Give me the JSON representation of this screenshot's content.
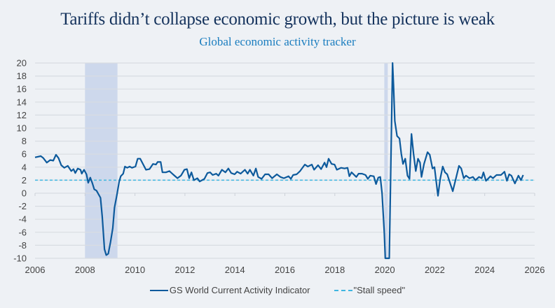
{
  "chart_data": {
    "type": "line",
    "title": "Tariffs didn’t collapse economic growth, but the picture is weak",
    "subtitle": "Global economic activity tracker",
    "xlim": [
      2006,
      2026
    ],
    "ylim": [
      -10,
      20
    ],
    "x_ticks": [
      "2006",
      "2008",
      "2010",
      "2012",
      "2014",
      "2016",
      "2018",
      "2020",
      "2022",
      "2024",
      "2026"
    ],
    "y_ticks": [
      "20",
      "18",
      "16",
      "14",
      "12",
      "10",
      "8",
      "6",
      "4",
      "2",
      "0",
      "-2",
      "-4",
      "-6",
      "-8",
      "-10"
    ],
    "grid": "horizontal",
    "legend_placement": "bottom",
    "shaded_periods": [
      [
        2008.0,
        2009.3
      ],
      [
        2019.98,
        2020.12
      ]
    ],
    "colors": {
      "series": "#0d5a9c",
      "stall": "#3fb6e0",
      "shade": "#cdd8ec",
      "title": "#14325c",
      "subtitle": "#1a7dbf"
    },
    "series": [
      {
        "name": "GS World Current Activity Indicator",
        "style": "solid",
        "points": [
          [
            2006.0,
            5.5
          ],
          [
            2006.23,
            5.7
          ],
          [
            2006.33,
            5.4
          ],
          [
            2006.47,
            4.7
          ],
          [
            2006.61,
            5.1
          ],
          [
            2006.73,
            5.0
          ],
          [
            2006.84,
            5.9
          ],
          [
            2006.94,
            5.4
          ],
          [
            2007.05,
            4.3
          ],
          [
            2007.17,
            3.9
          ],
          [
            2007.31,
            4.2
          ],
          [
            2007.45,
            3.4
          ],
          [
            2007.54,
            3.7
          ],
          [
            2007.61,
            3.1
          ],
          [
            2007.71,
            3.8
          ],
          [
            2007.82,
            3.6
          ],
          [
            2007.87,
            3.0
          ],
          [
            2007.96,
            3.6
          ],
          [
            2008.06,
            2.9
          ],
          [
            2008.13,
            1.6
          ],
          [
            2008.21,
            2.4
          ],
          [
            2008.29,
            1.6
          ],
          [
            2008.37,
            0.6
          ],
          [
            2008.46,
            0.4
          ],
          [
            2008.62,
            -0.7
          ],
          [
            2008.69,
            -3.6
          ],
          [
            2008.78,
            -8.6
          ],
          [
            2008.85,
            -9.5
          ],
          [
            2008.93,
            -9.3
          ],
          [
            2009.02,
            -7.5
          ],
          [
            2009.11,
            -5.4
          ],
          [
            2009.18,
            -2.2
          ],
          [
            2009.27,
            -0.4
          ],
          [
            2009.37,
            1.8
          ],
          [
            2009.43,
            2.6
          ],
          [
            2009.53,
            3.0
          ],
          [
            2009.6,
            4.1
          ],
          [
            2009.69,
            3.9
          ],
          [
            2009.79,
            4.1
          ],
          [
            2009.88,
            3.9
          ],
          [
            2010.02,
            4.1
          ],
          [
            2010.11,
            5.3
          ],
          [
            2010.21,
            5.3
          ],
          [
            2010.32,
            4.5
          ],
          [
            2010.44,
            3.6
          ],
          [
            2010.58,
            3.7
          ],
          [
            2010.72,
            4.5
          ],
          [
            2010.84,
            4.4
          ],
          [
            2010.91,
            4.8
          ],
          [
            2011.03,
            4.8
          ],
          [
            2011.1,
            3.2
          ],
          [
            2011.24,
            3.2
          ],
          [
            2011.38,
            3.4
          ],
          [
            2011.52,
            2.9
          ],
          [
            2011.7,
            2.3
          ],
          [
            2011.84,
            2.7
          ],
          [
            2011.98,
            3.6
          ],
          [
            2012.08,
            3.7
          ],
          [
            2012.17,
            2.3
          ],
          [
            2012.26,
            3.2
          ],
          [
            2012.36,
            2.0
          ],
          [
            2012.5,
            2.3
          ],
          [
            2012.59,
            1.8
          ],
          [
            2012.78,
            2.2
          ],
          [
            2012.9,
            3.1
          ],
          [
            2013.01,
            3.2
          ],
          [
            2013.11,
            2.8
          ],
          [
            2013.25,
            3.0
          ],
          [
            2013.34,
            2.7
          ],
          [
            2013.48,
            3.6
          ],
          [
            2013.62,
            3.2
          ],
          [
            2013.74,
            3.8
          ],
          [
            2013.85,
            3.1
          ],
          [
            2013.99,
            2.9
          ],
          [
            2014.09,
            3.3
          ],
          [
            2014.23,
            3.0
          ],
          [
            2014.4,
            3.6
          ],
          [
            2014.51,
            3.0
          ],
          [
            2014.6,
            3.6
          ],
          [
            2014.74,
            2.7
          ],
          [
            2014.84,
            3.8
          ],
          [
            2014.93,
            2.5
          ],
          [
            2015.07,
            2.2
          ],
          [
            2015.21,
            2.9
          ],
          [
            2015.35,
            2.9
          ],
          [
            2015.49,
            2.3
          ],
          [
            2015.68,
            2.9
          ],
          [
            2015.82,
            2.5
          ],
          [
            2015.96,
            2.3
          ],
          [
            2016.15,
            2.6
          ],
          [
            2016.24,
            2.2
          ],
          [
            2016.33,
            2.8
          ],
          [
            2016.47,
            2.9
          ],
          [
            2016.61,
            3.4
          ],
          [
            2016.8,
            4.4
          ],
          [
            2016.92,
            4.1
          ],
          [
            2017.08,
            4.4
          ],
          [
            2017.17,
            3.6
          ],
          [
            2017.33,
            4.3
          ],
          [
            2017.45,
            3.7
          ],
          [
            2017.59,
            4.7
          ],
          [
            2017.67,
            4.0
          ],
          [
            2017.75,
            5.3
          ],
          [
            2017.87,
            4.5
          ],
          [
            2017.99,
            4.4
          ],
          [
            2018.08,
            3.6
          ],
          [
            2018.25,
            3.9
          ],
          [
            2018.39,
            3.8
          ],
          [
            2018.51,
            3.9
          ],
          [
            2018.58,
            2.6
          ],
          [
            2018.67,
            3.2
          ],
          [
            2018.86,
            2.5
          ],
          [
            2018.95,
            3.0
          ],
          [
            2019.09,
            3.0
          ],
          [
            2019.23,
            2.8
          ],
          [
            2019.32,
            2.2
          ],
          [
            2019.42,
            2.7
          ],
          [
            2019.56,
            2.6
          ],
          [
            2019.65,
            1.4
          ],
          [
            2019.74,
            2.4
          ],
          [
            2019.82,
            2.5
          ],
          [
            2019.89,
            0.0
          ],
          [
            2019.98,
            -6.1
          ],
          [
            2020.02,
            -10
          ],
          [
            2020.18,
            -10
          ],
          [
            2020.31,
            20
          ],
          [
            2020.35,
            16.5
          ],
          [
            2020.4,
            11.1
          ],
          [
            2020.49,
            8.8
          ],
          [
            2020.59,
            8.4
          ],
          [
            2020.66,
            6.1
          ],
          [
            2020.73,
            4.5
          ],
          [
            2020.82,
            5.3
          ],
          [
            2020.91,
            2.7
          ],
          [
            2020.99,
            2.2
          ],
          [
            2021.07,
            9.1
          ],
          [
            2021.15,
            6.1
          ],
          [
            2021.24,
            3.4
          ],
          [
            2021.33,
            5.3
          ],
          [
            2021.41,
            4.7
          ],
          [
            2021.47,
            2.5
          ],
          [
            2021.57,
            4.5
          ],
          [
            2021.71,
            6.3
          ],
          [
            2021.8,
            5.9
          ],
          [
            2021.91,
            3.8
          ],
          [
            2021.99,
            4.0
          ],
          [
            2022.13,
            -0.4
          ],
          [
            2022.22,
            2.2
          ],
          [
            2022.32,
            4.1
          ],
          [
            2022.41,
            3.2
          ],
          [
            2022.5,
            2.9
          ],
          [
            2022.72,
            0.3
          ],
          [
            2022.83,
            2.0
          ],
          [
            2022.97,
            4.2
          ],
          [
            2023.06,
            3.8
          ],
          [
            2023.16,
            2.3
          ],
          [
            2023.25,
            2.7
          ],
          [
            2023.39,
            2.3
          ],
          [
            2023.53,
            2.5
          ],
          [
            2023.63,
            2.0
          ],
          [
            2023.77,
            2.5
          ],
          [
            2023.88,
            2.3
          ],
          [
            2023.95,
            3.2
          ],
          [
            2024.05,
            1.9
          ],
          [
            2024.23,
            2.6
          ],
          [
            2024.33,
            2.3
          ],
          [
            2024.47,
            2.8
          ],
          [
            2024.65,
            2.8
          ],
          [
            2024.79,
            3.3
          ],
          [
            2024.89,
            1.9
          ],
          [
            2024.98,
            2.9
          ],
          [
            2025.07,
            2.7
          ],
          [
            2025.21,
            1.5
          ],
          [
            2025.35,
            2.7
          ],
          [
            2025.45,
            2.0
          ],
          [
            2025.54,
            2.8
          ]
        ]
      },
      {
        "name": "\"Stall speed\"",
        "style": "dashed",
        "value": 2
      }
    ]
  }
}
